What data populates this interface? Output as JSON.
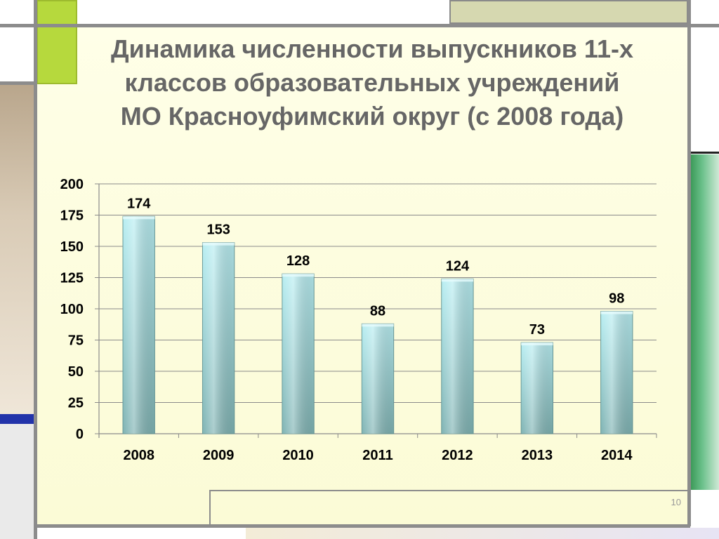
{
  "slide": {
    "title_lines": [
      "Динамика численности выпускников 11-х",
      "классов образовательных учреждений",
      "МО Красноуфимский округ (с 2008 года)"
    ],
    "page_number": "10"
  },
  "chart_data": {
    "type": "bar",
    "title": "",
    "xlabel": "",
    "ylabel": "",
    "categories": [
      "2008",
      "2009",
      "2010",
      "2011",
      "2012",
      "2013",
      "2014"
    ],
    "values": [
      174,
      153,
      128,
      88,
      124,
      73,
      98
    ],
    "ylim": [
      0,
      200
    ],
    "yticks": [
      0,
      25,
      50,
      75,
      100,
      125,
      150,
      175,
      200
    ],
    "grid": true,
    "legend": "none",
    "bar_colors": {
      "top": "#b8eef2",
      "bottom": "#7fb3b3"
    }
  }
}
